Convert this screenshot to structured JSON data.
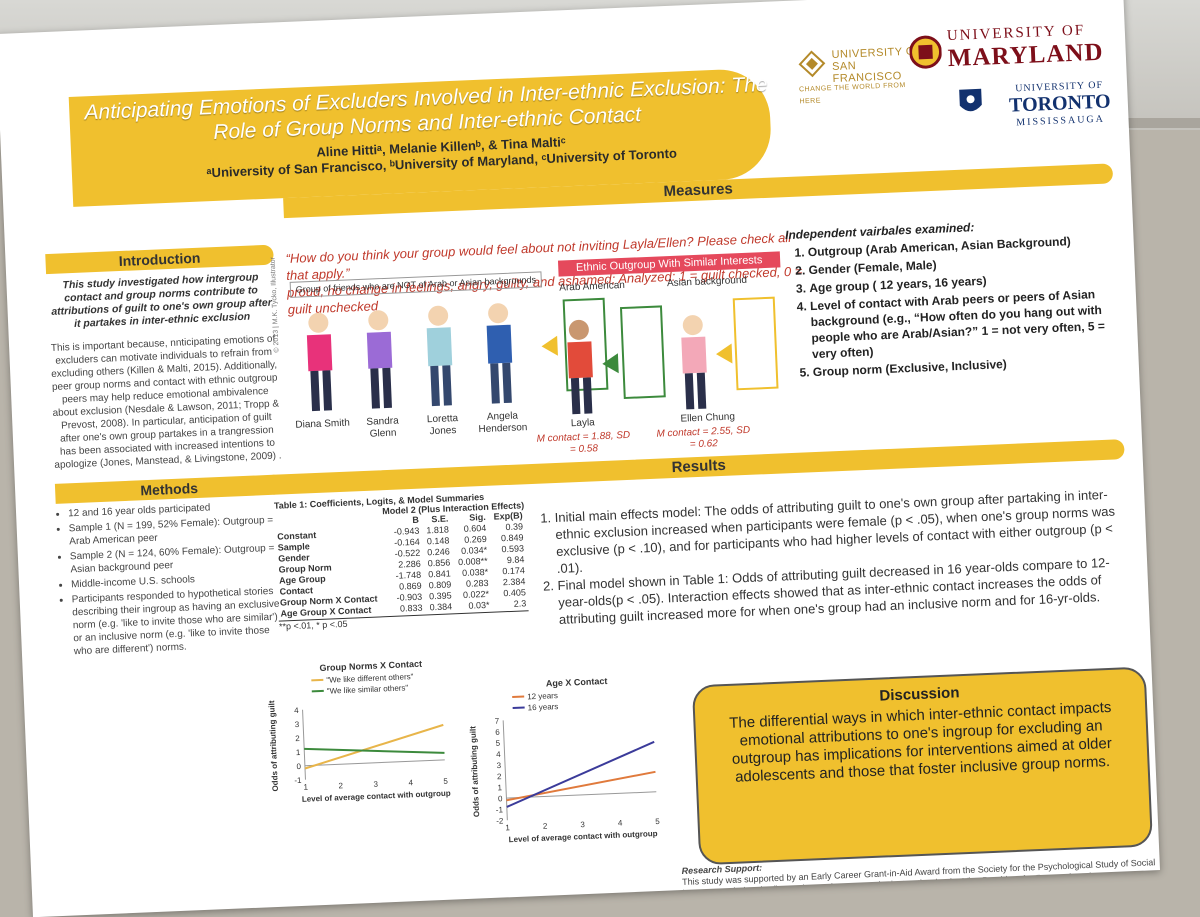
{
  "poster": {
    "title": "Anticipating Emotions of Excluders Involved in Inter-ethnic Exclusion: The Role of Group Norms and Inter-ethnic Contact",
    "authors": "Aline Hittiᵃ, Melanie Killenᵇ, & Tina Maltiᶜ",
    "affiliations": "ᵃUniversity of San Francisco, ᵇUniversity of Maryland, ᶜUniversity of Toronto"
  },
  "logos": {
    "usf": {
      "line1": "UNIVERSITY OF",
      "line2": "SAN FRANCISCO",
      "tagline": "CHANGE THE WORLD FROM HERE"
    },
    "umd": {
      "line1": "UNIVERSITY OF",
      "line2": "MARYLAND"
    },
    "uoft": {
      "line1": "UNIVERSITY OF",
      "line2": "TORONTO",
      "line3": "MISSISSAUGA"
    }
  },
  "intro": {
    "heading": "Introduction",
    "lead": "This study investigated how intergroup contact and group norms contribute to attributions of guilt to one's own group after it partakes in inter-ethnic exclusion",
    "body": "This is important because, nnticipating emotions of excluders can motivate individuals to refrain from excluding others (Killen & Malti, 2015). Additionally, peer group norms and contact with ethnic outgroup peers may help reduce emotional ambivalence about exclusion (Nesdale & Lawson, 2011; Tropp & Prevost, 2008). In particular, anticipation of guilt after one's own group partakes in a trangression has been associated with increased intentions to apologize (Jones, Manstead, & Livingstone, 2009) ."
  },
  "methods": {
    "heading": "Methods",
    "items": [
      "12 and 16 year olds participated",
      "Sample 1 (N = 199, 52% Female): Outgroup = Arab American peer",
      "Sample 2 (N = 124, 60% Female): Outgroup = Asian background peer",
      "Middle-income U.S. schools",
      "Participants responded to hypothetical stories describing their ingroup as having an exclusive norm (e.g. 'like to invite those who are similar') or an inclusive norm (e.g. 'like to invite those who are different') norms."
    ]
  },
  "measures": {
    "heading": "Measures",
    "question": "“How do you think your group would feel about not inviting Layla/Ellen? Please check all that apply.”",
    "options": "proud, no change in feelings, angry, guilty, and ashamed; Analyzed: 1 = guilt checked, 0 = guilt unchecked",
    "ingroup_label": "Group of friends who are NOT of Arab or Asian backgrounds",
    "ingroup_names": [
      "Diana Smith",
      "Sandra Glenn",
      "Loretta Jones",
      "Angela Henderson"
    ],
    "outgroup_label": "Ethnic Outgroup With Similar Interests",
    "outgroup_a": {
      "header": "Arab American",
      "name": "Layla",
      "stat": "M contact = 1.88, SD = 0.58"
    },
    "outgroup_b": {
      "header": "Asian background",
      "name": "Ellen Chung",
      "stat": "M contact = 2.55, SD = 0.62"
    },
    "copyright": "© 2013 | M.K. Tycko, Illustrator",
    "iv_title": "Independent vairbales examined:",
    "iv_items": [
      "Outgroup (Arab American, Asian Background)",
      "Gender (Female, Male)",
      "Age group ( 12 years, 16 years)",
      "Level of contact with Arab peers or peers of Asian background (e.g., “How often do you hang out with people who are Arab/Asian?”  1 = not very often, 5 = very often)",
      "Group norm (Exclusive, Inclusive)"
    ]
  },
  "results": {
    "heading": "Results",
    "table_title": "Table 1: Coefficients, Logits, & Model Summaries",
    "model_header": "Model 2 (Plus Interaction Effects)",
    "columns": [
      "",
      "B",
      "S.E.",
      "Sig.",
      "Exp(B)"
    ],
    "rows": [
      [
        "Constant",
        "-0.943",
        "1.818",
        "0.604",
        "0.39"
      ],
      [
        "Sample",
        "-0.164",
        "0.148",
        "0.269",
        "0.849"
      ],
      [
        "Gender",
        "-0.522",
        "0.246",
        "0.034*",
        "0.593"
      ],
      [
        "Group Norm",
        "2.286",
        "0.856",
        "0.008**",
        "9.84"
      ],
      [
        "Age Group",
        "-1.748",
        "0.841",
        "0.038*",
        "0.174"
      ],
      [
        "Contact",
        "0.869",
        "0.809",
        "0.283",
        "2.384"
      ],
      [
        "Group Norm X Contact",
        "-0.903",
        "0.395",
        "0.022*",
        "0.405"
      ],
      [
        "Age Group X Contact",
        "0.833",
        "0.384",
        "0.03*",
        "2.3"
      ]
    ],
    "note": "**p <.01, * p <.05",
    "points": [
      "Initial main effects model: The odds of attributing guilt to one's own group after partaking in inter-ethnic exclusion increased when participants were female (p < .05), when one's group norms was exclusive (p < .10), and for participants who had higher levels of contact with either outgroup (p < .01).",
      "Final model shown in Table 1: Odds of attributing guilt decreased in 16 year-olds compare to 12-year-olds(p < .05). Interaction effects showed that as inter-ethnic contact increases the odds of attributing guilt increased more for when one's group had an inclusive norm and for 16-yr-olds."
    ]
  },
  "chart_data": [
    {
      "type": "line",
      "title": "Group Norms X Contact",
      "xlabel": "Level of average contact with outgroup",
      "ylabel": "Odds of attributing guilt",
      "x": [
        1,
        5
      ],
      "xticks": [
        "1",
        "2",
        "3",
        "4",
        "5"
      ],
      "yticks": [
        "-1",
        "0",
        "1",
        "2",
        "3",
        "4"
      ],
      "ylim": [
        -1,
        4
      ],
      "series": [
        {
          "name": "\"We like different others\"",
          "color": "#e8b54a",
          "values": [
            -0.2,
            2.5
          ]
        },
        {
          "name": "\"We like similar others\"",
          "color": "#3c8a3c",
          "values": [
            1.2,
            0.5
          ]
        }
      ]
    },
    {
      "type": "line",
      "title": "Age X Contact",
      "xlabel": "Level of average contact with outgroup",
      "ylabel": "Odds of attributing guilt",
      "x": [
        1,
        5
      ],
      "xticks": [
        "1",
        "2",
        "3",
        "4",
        "5"
      ],
      "yticks": [
        "-2",
        "-1",
        "0",
        "1",
        "2",
        "3",
        "4",
        "5",
        "6",
        "7"
      ],
      "ylim": [
        -2,
        7
      ],
      "series": [
        {
          "name": "12 years",
          "color": "#e07a3c",
          "values": [
            -0.2,
            1.8
          ]
        },
        {
          "name": "16 years",
          "color": "#3b3b9a",
          "values": [
            -0.8,
            4.5
          ]
        }
      ]
    }
  ],
  "discussion": {
    "heading": "Discussion",
    "body": "The differential ways in which inter-ethnic contact impacts emotional attributions to one's ingroup for excluding an outgroup has implications for interventions aimed at older adolescents and those that foster inclusive group norms."
  },
  "support": {
    "heading": "Research Support:",
    "body": "This study was supported by an Early Career Grant-in-Aid Award from the Society for the Psychological Study of Social Issues awarded to the first author and a grant to the last author by the Vice President for Research at the..."
  }
}
